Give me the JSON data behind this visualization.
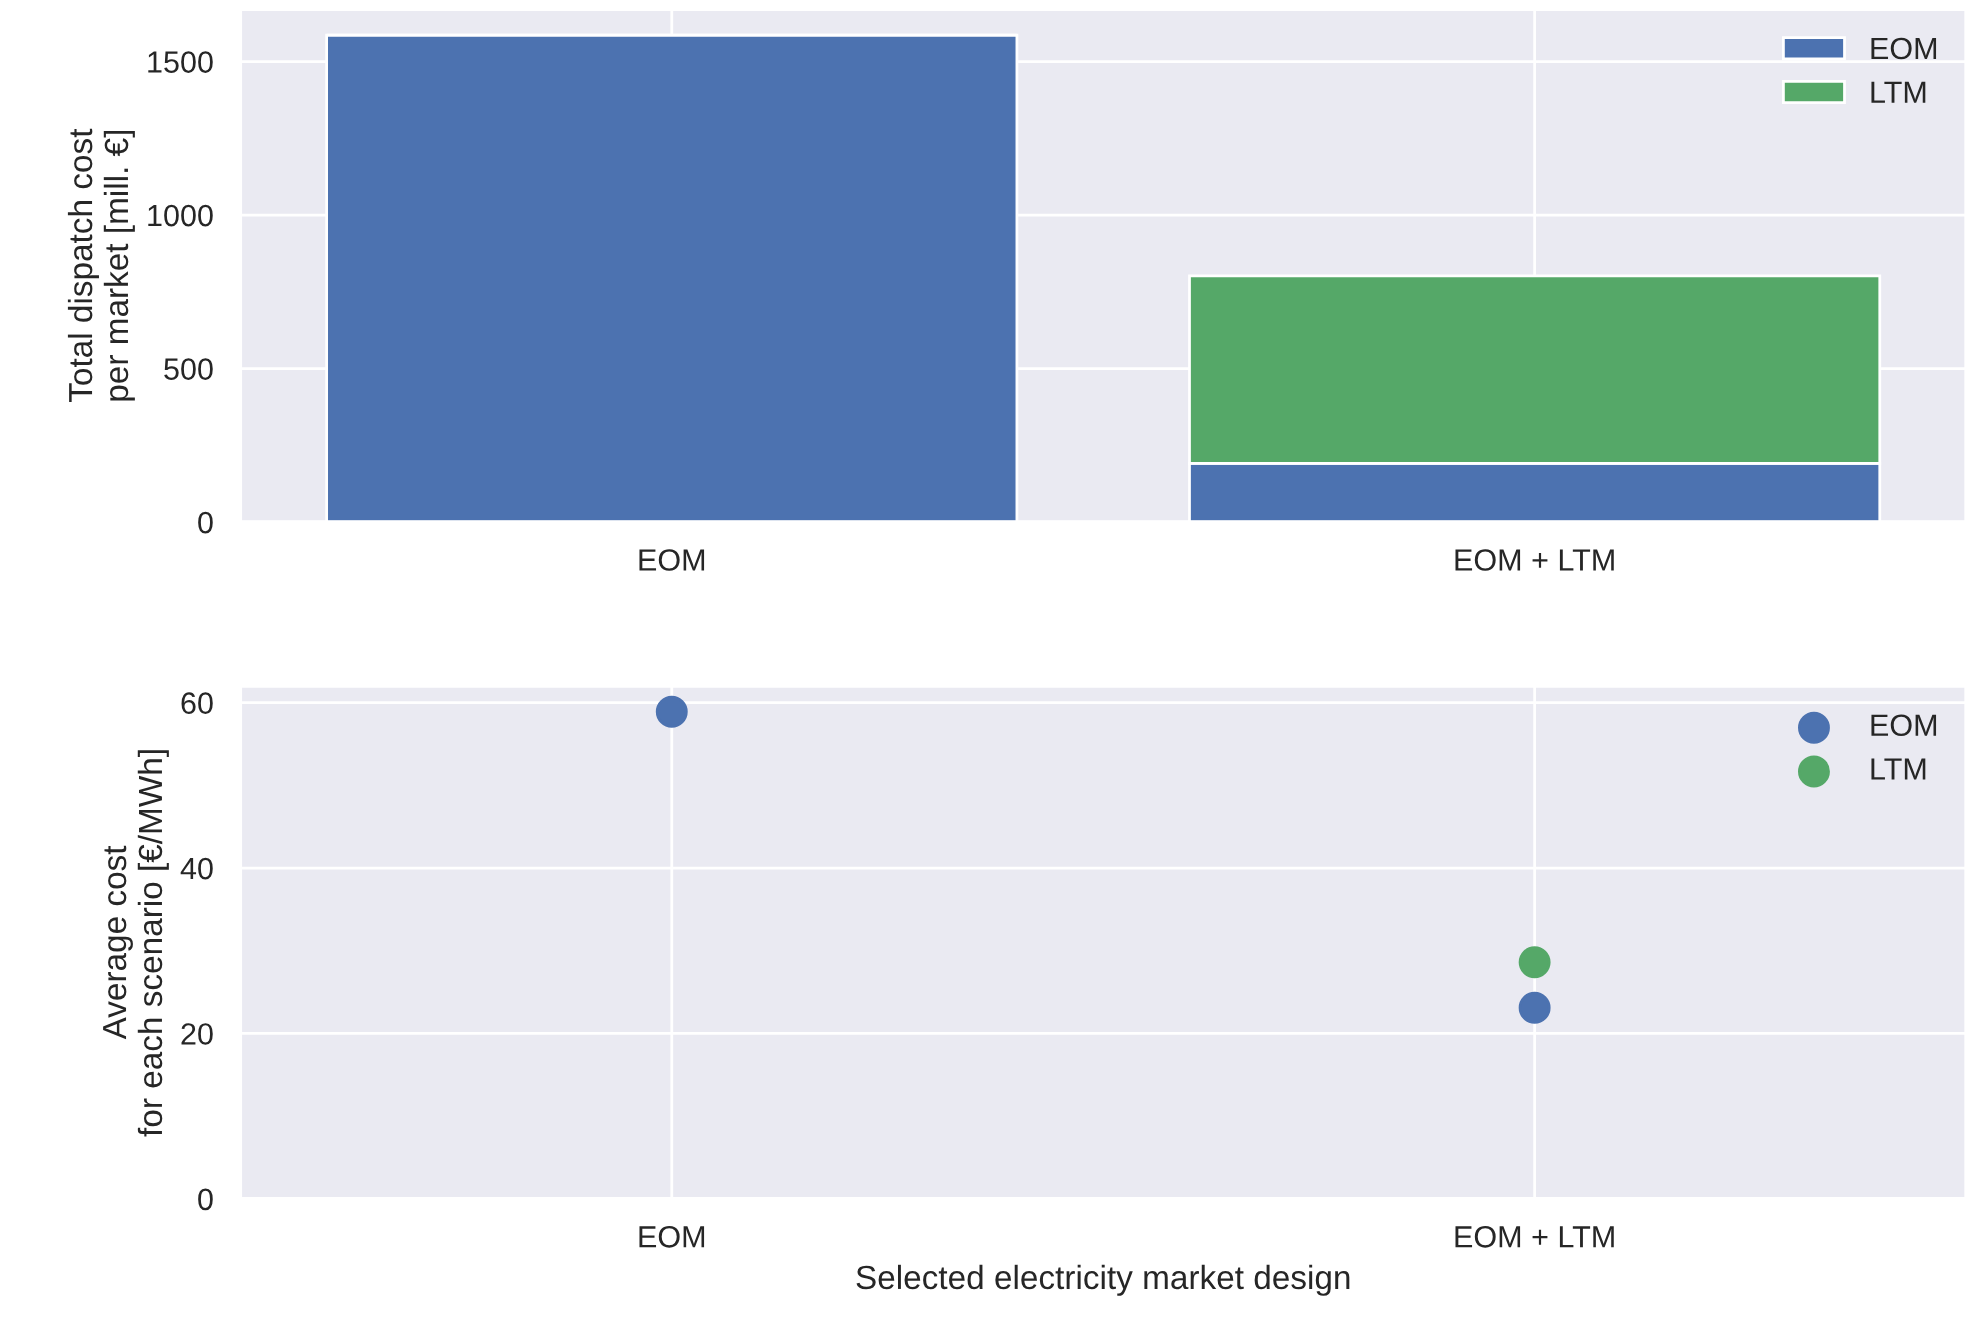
{
  "chart_data": [
    {
      "type": "bar",
      "stacked": true,
      "categories": [
        "EOM",
        "EOM + LTM"
      ],
      "ylabel": "Total dispatch cost\nper market [mill. €]",
      "ylim": [
        0,
        1670
      ],
      "yticks": [
        0,
        500,
        1000,
        1500
      ],
      "grid": true,
      "legend": "top right",
      "series": [
        {
          "name": "EOM",
          "color": "#4c72b0",
          "values": [
            1586,
            191
          ]
        },
        {
          "name": "LTM",
          "color": "#55a868",
          "values": [
            null,
            611
          ]
        }
      ]
    },
    {
      "type": "scatter",
      "categories": [
        "EOM",
        "EOM + LTM"
      ],
      "ylabel": "Average cost\nfor each scenario [€/MWh]",
      "xlabel": "Selected electricity market design",
      "ylim": [
        0,
        62
      ],
      "yticks": [
        0,
        20,
        40,
        60
      ],
      "grid": true,
      "legend": "top right",
      "marker": "circle",
      "series": [
        {
          "name": "EOM",
          "color": "#4c72b0",
          "values": [
            58.9,
            23.1
          ]
        },
        {
          "name": "LTM",
          "color": "#55a868",
          "values": [
            null,
            28.6
          ]
        }
      ]
    }
  ]
}
